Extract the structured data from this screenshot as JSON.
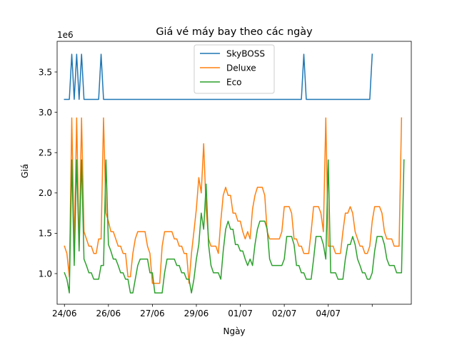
{
  "chart_data": {
    "type": "line",
    "title": "Giá vé máy bay theo các ngày",
    "xlabel": "Ngày",
    "ylabel": "Giá",
    "y_scale_label": "1e6",
    "xlim": [
      -3,
      142
    ],
    "ylim": [
      0.62,
      3.88
    ],
    "y_ticks": [
      1.0,
      1.5,
      2.0,
      2.5,
      3.0,
      3.5
    ],
    "y_tick_labels": [
      "1.0",
      "1.5",
      "2.0",
      "2.5",
      "3.0",
      "3.5"
    ],
    "x_ticks": [
      0,
      18,
      36,
      54,
      72,
      90,
      108,
      126
    ],
    "x_tick_labels": [
      "24/06",
      "26/06",
      "27/06",
      "29/06",
      "01/07",
      "02/07",
      "04/07",
      ""
    ],
    "legend_position": "upper center",
    "series": [
      {
        "name": "SkyBOSS",
        "color": "#1f77b4",
        "values": [
          3.16,
          3.16,
          3.16,
          3.72,
          3.16,
          3.72,
          3.16,
          3.72,
          3.16,
          3.16,
          3.16,
          3.16,
          3.16,
          3.16,
          3.16,
          3.72,
          3.16,
          3.16,
          3.16,
          3.16,
          3.16,
          3.16,
          3.16,
          3.16,
          3.16,
          3.16,
          3.16,
          3.16,
          3.16,
          3.16,
          3.16,
          3.16,
          3.16,
          3.16,
          3.16,
          3.16,
          3.16,
          3.16,
          3.16,
          3.16,
          3.16,
          3.16,
          3.16,
          3.16,
          3.16,
          3.16,
          3.16,
          3.16,
          3.16,
          3.16,
          3.16,
          3.16,
          3.16,
          3.16,
          3.16,
          3.16,
          3.16,
          3.16,
          3.16,
          3.16,
          3.16,
          3.16,
          3.16,
          3.16,
          3.16,
          3.16,
          3.16,
          3.16,
          3.16,
          3.16,
          3.16,
          3.16,
          3.16,
          3.16,
          3.16,
          3.16,
          3.16,
          3.16,
          3.16,
          3.16,
          3.16,
          3.16,
          3.16,
          3.16,
          3.16,
          3.16,
          3.16,
          3.16,
          3.16,
          3.16,
          3.16,
          3.16,
          3.16,
          3.16,
          3.16,
          3.16,
          3.16,
          3.16,
          3.72,
          3.16,
          3.16,
          3.16,
          3.16,
          3.16,
          3.16,
          3.16,
          3.16,
          3.16,
          3.16,
          3.16,
          3.16,
          3.16,
          3.16,
          3.16,
          3.16,
          3.16,
          3.16,
          3.16,
          3.16,
          3.16,
          3.16,
          3.16,
          3.16,
          3.16,
          3.16,
          3.16,
          3.72
        ]
      },
      {
        "name": "Deluxe",
        "color": "#ff7f0e",
        "values": [
          1.34,
          1.25,
          0.96,
          2.93,
          1.31,
          2.93,
          1.31,
          2.93,
          1.52,
          1.43,
          1.34,
          1.34,
          1.25,
          1.25,
          1.43,
          1.43,
          2.93,
          1.75,
          1.65,
          1.52,
          1.52,
          1.43,
          1.34,
          1.34,
          1.25,
          1.25,
          0.96,
          0.96,
          1.25,
          1.43,
          1.52,
          1.52,
          1.52,
          1.52,
          1.34,
          1.25,
          0.88,
          0.88,
          0.88,
          0.88,
          1.34,
          1.52,
          1.52,
          1.52,
          1.52,
          1.43,
          1.43,
          1.34,
          1.34,
          1.25,
          1.25,
          0.88,
          1.25,
          1.52,
          1.8,
          2.19,
          2.0,
          2.61,
          1.8,
          1.43,
          1.34,
          1.34,
          1.34,
          1.25,
          1.65,
          1.97,
          2.07,
          1.97,
          1.97,
          1.75,
          1.75,
          1.65,
          1.65,
          1.52,
          1.43,
          1.52,
          1.43,
          1.8,
          1.97,
          2.07,
          2.07,
          2.07,
          1.97,
          1.52,
          1.43,
          1.43,
          1.43,
          1.43,
          1.43,
          1.52,
          1.83,
          1.83,
          1.83,
          1.75,
          1.43,
          1.43,
          1.34,
          1.34,
          1.25,
          1.25,
          1.25,
          1.52,
          1.83,
          1.83,
          1.83,
          1.75,
          1.52,
          2.93,
          1.34,
          1.34,
          1.34,
          1.25,
          1.25,
          1.25,
          1.52,
          1.75,
          1.75,
          1.83,
          1.75,
          1.52,
          1.43,
          1.34,
          1.34,
          1.25,
          1.25,
          1.34,
          1.65,
          1.83,
          1.83,
          1.83,
          1.75,
          1.52,
          1.43,
          1.43,
          1.43,
          1.34,
          1.34,
          1.34,
          2.93
        ]
      },
      {
        "name": "Eco",
        "color": "#2ca02c",
        "values": [
          1.01,
          0.93,
          0.76,
          2.41,
          1.1,
          2.41,
          1.28,
          2.41,
          1.18,
          1.1,
          1.01,
          1.01,
          0.93,
          0.93,
          0.93,
          1.1,
          1.1,
          2.41,
          1.36,
          1.28,
          1.18,
          1.18,
          1.1,
          1.01,
          1.01,
          0.93,
          0.93,
          0.76,
          0.76,
          0.93,
          1.1,
          1.18,
          1.18,
          1.18,
          1.18,
          1.01,
          1.01,
          0.76,
          0.76,
          0.76,
          0.76,
          1.01,
          1.18,
          1.18,
          1.18,
          1.18,
          1.1,
          1.1,
          1.01,
          1.01,
          0.93,
          0.93,
          0.76,
          0.93,
          1.18,
          1.36,
          1.75,
          1.55,
          2.11,
          1.36,
          1.1,
          1.01,
          1.01,
          1.01,
          0.93,
          1.28,
          1.55,
          1.65,
          1.55,
          1.55,
          1.36,
          1.36,
          1.28,
          1.28,
          1.18,
          1.1,
          1.18,
          1.1,
          1.36,
          1.55,
          1.65,
          1.65,
          1.65,
          1.55,
          1.18,
          1.1,
          1.1,
          1.1,
          1.1,
          1.1,
          1.18,
          1.46,
          1.46,
          1.46,
          1.36,
          1.1,
          1.1,
          1.01,
          1.01,
          0.93,
          0.93,
          0.93,
          1.18,
          1.46,
          1.46,
          1.46,
          1.36,
          1.18,
          2.41,
          1.01,
          1.01,
          1.01,
          0.93,
          0.93,
          0.93,
          1.18,
          1.36,
          1.36,
          1.46,
          1.36,
          1.18,
          1.1,
          1.01,
          1.01,
          0.93,
          0.93,
          1.01,
          1.28,
          1.46,
          1.46,
          1.46,
          1.36,
          1.18,
          1.1,
          1.1,
          1.1,
          1.01,
          1.01,
          1.01,
          2.41
        ]
      }
    ]
  }
}
